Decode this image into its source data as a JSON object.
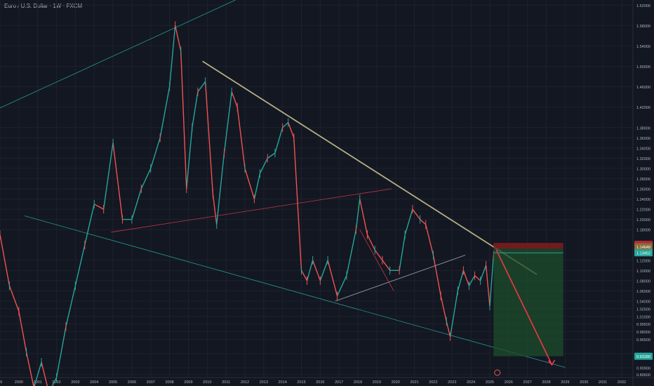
{
  "chart_data": {
    "type": "line",
    "title": "Euro / U.S. Dollar · 1W · FXCM",
    "x_ticks": [
      "99",
      "2000",
      "2001",
      "2002",
      "2003",
      "2004",
      "2005",
      "2006",
      "2007",
      "2008",
      "2009",
      "2010",
      "2011",
      "2012",
      "2013",
      "2014",
      "2015",
      "2016",
      "2017",
      "2018",
      "2019",
      "2020",
      "2021",
      "2022",
      "2023",
      "2024",
      "2025",
      "2026",
      "2027",
      "2028",
      "2029",
      "2030",
      "2031",
      "2032"
    ],
    "y_ticks": [
      "1.62000",
      "1.58000",
      "1.54000",
      "1.50000",
      "1.46000",
      "1.42000",
      "1.38000",
      "1.36000",
      "1.34000",
      "1.32000",
      "1.30000",
      "1.28000",
      "1.26000",
      "1.24000",
      "1.22000",
      "1.20000",
      "1.18000",
      "1.12000",
      "1.10000",
      "1.08000",
      "1.06000",
      "1.04000",
      "1.02500",
      "1.01000",
      "0.99500",
      "0.98000",
      "0.96500",
      "0.93700",
      "0.90900",
      "0.89600"
    ],
    "price_labels": {
      "stop": "1.15138",
      "current": "1.14648",
      "mid": "1.13452",
      "target": "0.93180"
    },
    "series": [
      {
        "x": [
          1999.0,
          1999.5,
          2000.0,
          2000.4,
          2000.8,
          2001.2,
          2001.6,
          2002.0,
          2002.5,
          2003.0,
          2003.5,
          2004.0,
          2004.5,
          2005.0,
          2005.5,
          2006.0,
          2006.5,
          2007.0,
          2007.5,
          2008.0,
          2008.3,
          2008.6,
          2008.9,
          2009.2,
          2009.5,
          2009.9,
          2010.3,
          2010.5,
          2010.9,
          2011.3,
          2011.6,
          2012.0,
          2012.5,
          2012.8,
          2013.2,
          2013.6,
          2014.0,
          2014.3,
          2014.6,
          2015.0,
          2015.3,
          2015.6,
          2016.0,
          2016.4,
          2016.9,
          2017.4,
          2017.9,
          2018.1,
          2018.5,
          2018.9,
          2019.3,
          2019.7,
          2020.2,
          2020.5,
          2020.9,
          2021.3,
          2021.6,
          2022.0,
          2022.4,
          2022.7,
          2022.9,
          2023.3,
          2023.6,
          2023.9,
          2024.2,
          2024.5,
          2024.8,
          2025.0,
          2025.2
        ],
        "y": [
          1.17,
          1.07,
          1.02,
          0.94,
          0.87,
          0.92,
          0.86,
          0.89,
          0.99,
          1.07,
          1.15,
          1.23,
          1.22,
          1.35,
          1.2,
          1.2,
          1.26,
          1.3,
          1.36,
          1.46,
          1.58,
          1.53,
          1.26,
          1.38,
          1.45,
          1.47,
          1.25,
          1.19,
          1.33,
          1.45,
          1.42,
          1.3,
          1.24,
          1.29,
          1.32,
          1.33,
          1.38,
          1.39,
          1.36,
          1.1,
          1.08,
          1.12,
          1.08,
          1.12,
          1.05,
          1.09,
          1.18,
          1.24,
          1.17,
          1.14,
          1.12,
          1.1,
          1.1,
          1.17,
          1.22,
          1.2,
          1.19,
          1.13,
          1.05,
          1.0,
          0.97,
          1.06,
          1.1,
          1.07,
          1.09,
          1.08,
          1.11,
          1.03,
          1.13
        ]
      }
    ],
    "trendlines": [
      {
        "color": "#26a69a",
        "points": [
          [
            1998.5,
            1.41
          ],
          [
            2011.5,
            1.63
          ]
        ]
      },
      {
        "color": "#c5c08e",
        "points": [
          [
            2009.75,
            1.51
          ],
          [
            2027.5,
            1.092
          ]
        ]
      },
      {
        "color": "#26a69a",
        "points": [
          [
            2000.3,
            1.207
          ],
          [
            2029.0,
            0.91
          ]
        ]
      },
      {
        "color": "#d23c4a",
        "points": [
          [
            2004.9,
            1.175
          ],
          [
            2019.8,
            1.26
          ]
        ]
      },
      {
        "color": "#b2b5be",
        "points": [
          [
            2016.8,
            1.04
          ],
          [
            2023.7,
            1.13
          ]
        ]
      },
      {
        "color": "#d23c4a",
        "points": [
          [
            2018.1,
            1.18
          ],
          [
            2019.9,
            1.06
          ]
        ]
      }
    ],
    "ylim": [
      0.89,
      1.63
    ],
    "xlim": [
      1999.0,
      2032.6
    ],
    "grid": true
  }
}
